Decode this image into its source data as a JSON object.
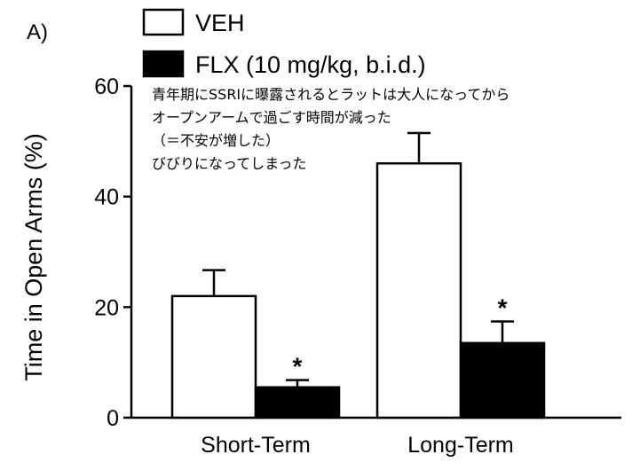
{
  "panel_label": "A)",
  "annotation_lines": [
    "青年期にSSRIに曝露されるとラットは大人になってから",
    "オープンアームで過ごす時間が減った",
    "（＝不安が増した）",
    "びびりになってしまった"
  ],
  "chart_data": {
    "type": "bar",
    "categories": [
      "Short-Term",
      "Long-Term"
    ],
    "series": [
      {
        "name": "VEH",
        "color": "#ffffff",
        "values": [
          22,
          46
        ],
        "errors": [
          4.7,
          5.5
        ]
      },
      {
        "name": "FLX (10 mg/kg, b.i.d.)",
        "color": "#000000",
        "values": [
          5.5,
          13.5
        ],
        "errors": [
          1.3,
          3.9
        ]
      }
    ],
    "significance": [
      {
        "series": 1,
        "category": 0,
        "label": "*"
      },
      {
        "series": 1,
        "category": 1,
        "label": "*"
      }
    ],
    "ylabel": "Time in Open Arms (%)",
    "xlabel": "",
    "title": "",
    "ylim": [
      0,
      60
    ],
    "yticks": [
      0,
      20,
      40,
      60
    ],
    "legend_position": "top-left",
    "grid": false
  }
}
